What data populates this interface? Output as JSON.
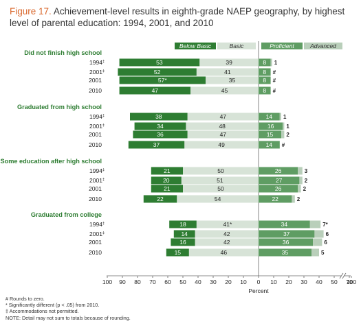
{
  "title": {
    "figure_label": "Figure 17.",
    "text": "Achievement-level results in eighth-grade NAEP geography, by highest level of parental education: 1994, 2001, and 2010"
  },
  "colors": {
    "below_basic": "#2e7d32",
    "basic": "#d7e3d7",
    "proficient": "#5f9d63",
    "advanced": "#b9cfba",
    "group_label": "#2e7d32",
    "title_accent": "#d9662a"
  },
  "chart_data": {
    "type": "bar",
    "orientation": "horizontal-diverging",
    "legend": [
      "Below Basic",
      "Basic",
      "Proficient",
      "Advanced"
    ],
    "xlabel": "Percent",
    "xlim": [
      -100,
      100
    ],
    "xticks": [
      "100",
      "90",
      "80",
      "70",
      "60",
      "50",
      "40",
      "30",
      "20",
      "10",
      "0",
      "10",
      "20",
      "30",
      "40",
      "50",
      "70",
      "100"
    ],
    "groups": [
      {
        "name": "Did not finish high school",
        "rows": [
          {
            "year": "1994",
            "mark": "‡",
            "below_basic": 53,
            "basic": 39,
            "proficient": 8,
            "advanced": 1,
            "below_label": "53",
            "basic_label": "39",
            "prof_label": "8",
            "adv_label": "1"
          },
          {
            "year": "2001",
            "mark": "‡",
            "below_basic": 52,
            "basic": 41,
            "proficient": 8,
            "advanced": 0,
            "below_label": "52",
            "basic_label": "41",
            "prof_label": "8",
            "adv_label": "#"
          },
          {
            "year": "2001",
            "mark": "",
            "below_basic": 57,
            "basic": 35,
            "proficient": 8,
            "advanced": 0,
            "below_label": "57*",
            "basic_label": "35",
            "prof_label": "8",
            "adv_label": "#"
          },
          {
            "year": "2010",
            "mark": "",
            "below_basic": 47,
            "basic": 45,
            "proficient": 8,
            "advanced": 0,
            "below_label": "47",
            "basic_label": "45",
            "prof_label": "8",
            "adv_label": "#"
          }
        ]
      },
      {
        "name": "Graduated from high school",
        "rows": [
          {
            "year": "1994",
            "mark": "‡",
            "below_basic": 38,
            "basic": 47,
            "proficient": 14,
            "advanced": 1,
            "below_label": "38",
            "basic_label": "47",
            "prof_label": "14",
            "adv_label": "1"
          },
          {
            "year": "2001",
            "mark": "‡",
            "below_basic": 34,
            "basic": 48,
            "proficient": 16,
            "advanced": 1,
            "below_label": "34",
            "basic_label": "48",
            "prof_label": "16",
            "adv_label": "1"
          },
          {
            "year": "2001",
            "mark": "",
            "below_basic": 36,
            "basic": 47,
            "proficient": 15,
            "advanced": 2,
            "below_label": "36",
            "basic_label": "47",
            "prof_label": "15",
            "adv_label": "2"
          },
          {
            "year": "2010",
            "mark": "",
            "below_basic": 37,
            "basic": 49,
            "proficient": 14,
            "advanced": 0,
            "below_label": "37",
            "basic_label": "49",
            "prof_label": "14",
            "adv_label": "#"
          }
        ]
      },
      {
        "name": "Some education after high school",
        "rows": [
          {
            "year": "1994",
            "mark": "‡",
            "below_basic": 21,
            "basic": 50,
            "proficient": 26,
            "advanced": 3,
            "below_label": "21",
            "basic_label": "50",
            "prof_label": "26",
            "adv_label": "3"
          },
          {
            "year": "2001",
            "mark": "‡",
            "below_basic": 20,
            "basic": 51,
            "proficient": 27,
            "advanced": 2,
            "below_label": "20",
            "basic_label": "51",
            "prof_label": "27",
            "adv_label": "2"
          },
          {
            "year": "2001",
            "mark": "",
            "below_basic": 21,
            "basic": 50,
            "proficient": 26,
            "advanced": 2,
            "below_label": "21",
            "basic_label": "50",
            "prof_label": "26",
            "adv_label": "2"
          },
          {
            "year": "2010",
            "mark": "",
            "below_basic": 22,
            "basic": 54,
            "proficient": 22,
            "advanced": 2,
            "below_label": "22",
            "basic_label": "54",
            "prof_label": "22",
            "adv_label": "2"
          }
        ]
      },
      {
        "name": "Graduated from college",
        "rows": [
          {
            "year": "1994",
            "mark": "‡",
            "below_basic": 18,
            "basic": 41,
            "proficient": 34,
            "advanced": 7,
            "below_label": "18",
            "basic_label": "41*",
            "prof_label": "34",
            "adv_label": "7*"
          },
          {
            "year": "2001",
            "mark": "‡",
            "below_basic": 14,
            "basic": 42,
            "proficient": 37,
            "advanced": 6,
            "below_label": "14",
            "basic_label": "42",
            "prof_label": "37",
            "adv_label": "6"
          },
          {
            "year": "2001",
            "mark": "",
            "below_basic": 16,
            "basic": 42,
            "proficient": 36,
            "advanced": 6,
            "below_label": "16",
            "basic_label": "42",
            "prof_label": "36",
            "adv_label": "6"
          },
          {
            "year": "2010",
            "mark": "",
            "below_basic": 15,
            "basic": 46,
            "proficient": 35,
            "advanced": 5,
            "below_label": "15",
            "basic_label": "46",
            "prof_label": "35",
            "adv_label": "5"
          }
        ]
      }
    ]
  },
  "notes": {
    "rounds": "# Rounds to zero.",
    "significant": "* Significantly different (p < .05) from 2010.",
    "accommodations": "‡ Accommodations not permitted.",
    "detail": "NOTE: Detail may not sum to totals because of rounding."
  }
}
